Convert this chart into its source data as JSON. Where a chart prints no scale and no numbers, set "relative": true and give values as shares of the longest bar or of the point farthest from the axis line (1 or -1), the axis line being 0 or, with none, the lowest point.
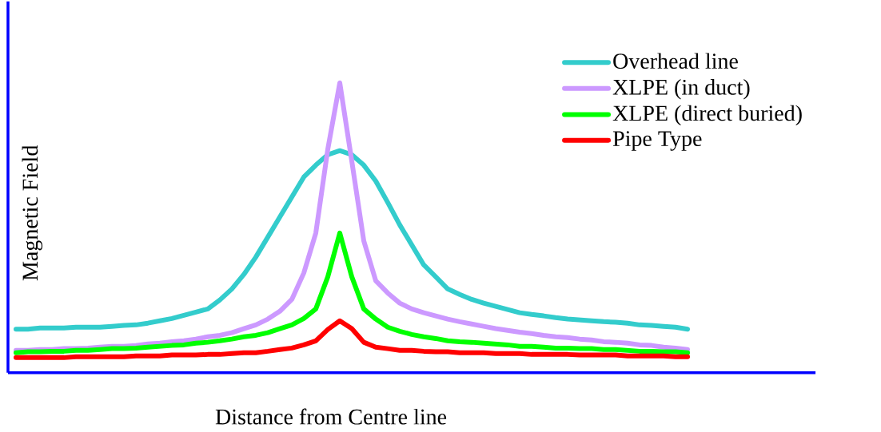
{
  "chart_data": {
    "type": "line",
    "relative": true,
    "xlabel": "Distance from Centre line",
    "ylabel": "Magnetic Field",
    "legend": "top right",
    "marker": "none",
    "line_style": "solid",
    "categories": [
      null,
      null,
      null,
      null,
      null,
      null,
      null,
      null,
      null,
      null,
      null,
      null,
      null,
      null,
      null,
      null,
      null,
      null,
      null,
      null,
      null,
      null,
      null,
      null,
      null,
      null,
      null,
      null,
      null,
      null,
      null,
      null,
      null,
      null,
      null,
      null,
      null,
      null,
      null,
      null,
      null,
      null,
      null,
      null,
      null,
      null,
      null,
      null,
      null,
      null,
      null,
      null,
      null,
      null,
      null,
      null,
      null
    ],
    "series": [
      {
        "name": "Overhead line",
        "color": "#33cccc",
        "values": [
          0.15,
          0.15,
          0.154,
          0.154,
          0.154,
          0.157,
          0.157,
          0.157,
          0.16,
          0.163,
          0.165,
          0.171,
          0.179,
          0.187,
          0.198,
          0.209,
          0.22,
          0.251,
          0.289,
          0.339,
          0.399,
          0.468,
          0.537,
          0.606,
          0.675,
          0.716,
          0.752,
          0.766,
          0.752,
          0.716,
          0.661,
          0.587,
          0.51,
          0.441,
          0.372,
          0.331,
          0.289,
          0.27,
          0.253,
          0.24,
          0.229,
          0.218,
          0.207,
          0.201,
          0.196,
          0.19,
          0.185,
          0.182,
          0.179,
          0.176,
          0.174,
          0.171,
          0.165,
          0.163,
          0.16,
          0.157,
          0.15
        ]
      },
      {
        "name": "XLPE (in duct)",
        "color": "#cc99ff",
        "values": [
          0.077,
          0.077,
          0.08,
          0.08,
          0.083,
          0.083,
          0.085,
          0.088,
          0.091,
          0.091,
          0.094,
          0.099,
          0.102,
          0.107,
          0.11,
          0.116,
          0.124,
          0.129,
          0.138,
          0.152,
          0.165,
          0.185,
          0.212,
          0.253,
          0.344,
          0.482,
          0.771,
          1,
          0.73,
          0.455,
          0.317,
          0.275,
          0.24,
          0.22,
          0.207,
          0.196,
          0.185,
          0.176,
          0.168,
          0.16,
          0.152,
          0.146,
          0.14,
          0.135,
          0.129,
          0.124,
          0.121,
          0.116,
          0.113,
          0.107,
          0.105,
          0.102,
          0.096,
          0.094,
          0.088,
          0.085,
          0.08
        ]
      },
      {
        "name": "XLPE (direct buried)",
        "color": "#00ff00",
        "values": [
          0.069,
          0.072,
          0.072,
          0.074,
          0.074,
          0.077,
          0.077,
          0.08,
          0.083,
          0.083,
          0.085,
          0.088,
          0.091,
          0.094,
          0.096,
          0.102,
          0.105,
          0.11,
          0.116,
          0.124,
          0.129,
          0.138,
          0.152,
          0.165,
          0.187,
          0.22,
          0.331,
          0.482,
          0.331,
          0.22,
          0.185,
          0.157,
          0.143,
          0.132,
          0.124,
          0.118,
          0.11,
          0.107,
          0.105,
          0.102,
          0.099,
          0.096,
          0.091,
          0.091,
          0.088,
          0.085,
          0.085,
          0.083,
          0.083,
          0.08,
          0.08,
          0.077,
          0.074,
          0.074,
          0.072,
          0.072,
          0.069
        ]
      },
      {
        "name": "Pipe Type",
        "color": "#ff0000",
        "values": [
          0.052,
          0.052,
          0.052,
          0.052,
          0.052,
          0.055,
          0.055,
          0.055,
          0.055,
          0.055,
          0.058,
          0.058,
          0.058,
          0.061,
          0.061,
          0.061,
          0.063,
          0.063,
          0.066,
          0.069,
          0.069,
          0.074,
          0.08,
          0.085,
          0.096,
          0.11,
          0.149,
          0.179,
          0.152,
          0.105,
          0.088,
          0.083,
          0.077,
          0.077,
          0.074,
          0.072,
          0.072,
          0.069,
          0.069,
          0.069,
          0.066,
          0.066,
          0.066,
          0.063,
          0.063,
          0.063,
          0.063,
          0.061,
          0.061,
          0.061,
          0.061,
          0.058,
          0.058,
          0.058,
          0.058,
          0.055,
          0.055
        ]
      }
    ]
  }
}
